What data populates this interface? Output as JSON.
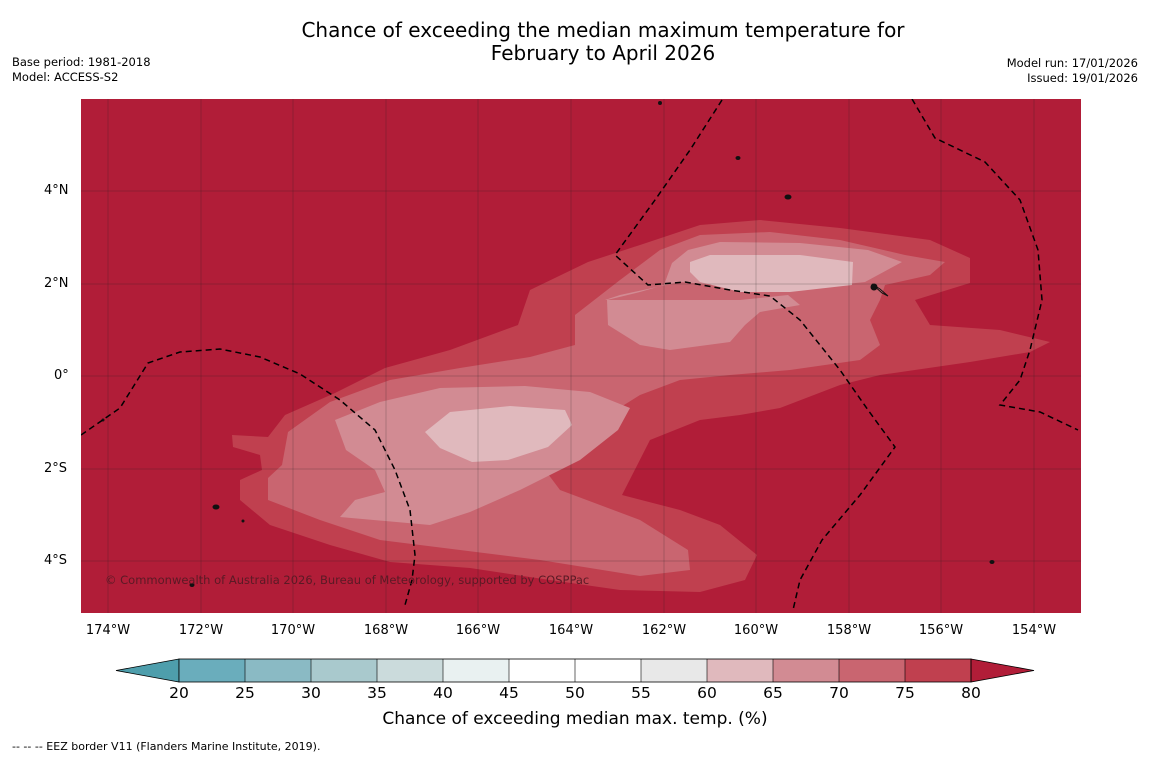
{
  "header": {
    "title_line1": "Chance of exceeding the median maximum temperature for",
    "title_line2": "February to April 2026",
    "base_period": "Base period: 1981-2018",
    "model": "Model: ACCESS-S2",
    "model_run": "Model run: 17/01/2026",
    "issued": "Issued: 19/01/2026"
  },
  "map": {
    "credit": "© Commonwealth of Australia 2026, Bureau of Meteorology, supported by COSPPac",
    "lat_labels": [
      "4°N",
      "2°N",
      "0°",
      "2°S",
      "4°S"
    ],
    "lon_labels": [
      "174°W",
      "172°W",
      "170°W",
      "168°W",
      "166°W",
      "164°W",
      "162°W",
      "160°W",
      "158°W",
      "156°W",
      "154°W"
    ],
    "colors": {
      "gt80": "#b11d38",
      "b75_80": "#c0404f",
      "b70_75": "#c96570",
      "b65_70": "#d28b93",
      "b60_65": "#e0b9bd"
    }
  },
  "colorbar": {
    "ticks": [
      "20",
      "25",
      "30",
      "35",
      "40",
      "45",
      "50",
      "55",
      "60",
      "65",
      "70",
      "75",
      "80"
    ],
    "colors": [
      "#4e9eac",
      "#6aadbc",
      "#8abac4",
      "#a9c9cd",
      "#cbdbdc",
      "#e9f1f1",
      "#ffffff",
      "#ffffff",
      "#e8e8e8",
      "#e0b9bd",
      "#d28b93",
      "#c96570",
      "#c0404f",
      "#b11d38"
    ],
    "label": "Chance of exceeding median max. temp. (%)"
  },
  "footnote": "--  --  -- EEZ border V11 (Flanders Marine Institute, 2019)."
}
